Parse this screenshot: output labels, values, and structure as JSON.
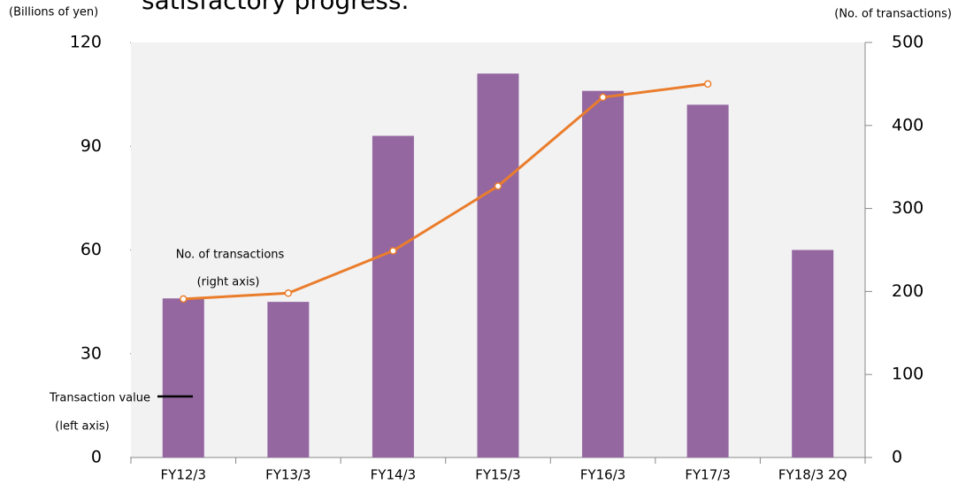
{
  "chart_data": {
    "type": "bar_line",
    "title": "satisfactory progress.",
    "y_label": "(Billions of yen)",
    "y2_label": "(No. of transactions)",
    "annotations": [
      "No. of transactions",
      "(right axis)",
      "Transaction value",
      "(left axis)"
    ],
    "categories": [
      "FY12/3",
      "FY13/3",
      "FY14/3",
      "FY15/3",
      "FY16/3",
      "FY17/3",
      "FY18/3 2Q"
    ],
    "series": [
      {
        "name": "Transaction value",
        "type": "bar",
        "color": "#9467a1",
        "values": [
          46,
          45,
          93,
          111,
          106,
          102,
          60
        ]
      },
      {
        "name": "No. of transactions",
        "type": "line",
        "axis": "y2",
        "color": "#ea7d2c",
        "values": [
          191,
          198,
          249,
          327,
          434,
          450,
          null
        ]
      }
    ],
    "ylim": [
      0,
      120
    ],
    "yticks": [
      0,
      30,
      60,
      90,
      120
    ],
    "y2lim": [
      0,
      500
    ],
    "y2ticks": [
      0,
      100,
      200,
      300,
      400,
      500
    ]
  }
}
